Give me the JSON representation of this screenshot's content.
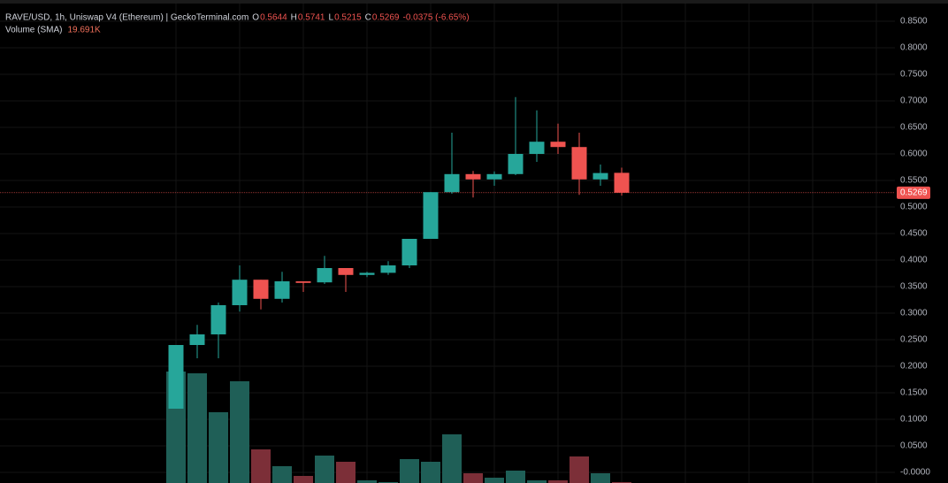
{
  "header": {
    "title": "RAVE/USD, 1h, Uniswap V4 (Ethereum) | GeckoTerminal.com",
    "ohlc": [
      {
        "key": "O",
        "value": "0.5644"
      },
      {
        "key": "H",
        "value": "0.5741"
      },
      {
        "key": "L",
        "value": "0.5215"
      },
      {
        "key": "C",
        "value": "0.5269"
      }
    ],
    "change": "-0.0375 (-6.65%)",
    "volume_label": "Volume (SMA)",
    "volume_value": "19.691K"
  },
  "chart_data": {
    "type": "candlestick",
    "up_color": "#26a69a",
    "down_color": "#ef5350",
    "volume_up_color": "#1f5f57",
    "volume_down_color": "#7c2f38",
    "open": [
      0.12,
      0.24,
      0.26,
      0.315,
      0.363,
      0.327,
      0.36,
      0.358,
      0.385,
      0.372,
      0.376,
      0.39,
      0.44,
      0.528,
      0.562,
      0.552,
      0.562,
      0.6,
      0.623,
      0.613,
      0.552,
      0.5644
    ],
    "high": [
      0.24,
      0.278,
      0.32,
      0.39,
      0.363,
      0.378,
      0.36,
      0.408,
      0.385,
      0.378,
      0.398,
      0.44,
      0.528,
      0.64,
      0.568,
      0.567,
      0.707,
      0.682,
      0.657,
      0.64,
      0.58,
      0.5741
    ],
    "low": [
      0.12,
      0.215,
      0.215,
      0.303,
      0.307,
      0.32,
      0.34,
      0.355,
      0.34,
      0.368,
      0.372,
      0.385,
      0.44,
      0.525,
      0.518,
      0.54,
      0.56,
      0.585,
      0.6,
      0.523,
      0.54,
      0.5215
    ],
    "close": [
      0.24,
      0.26,
      0.315,
      0.363,
      0.327,
      0.36,
      0.357,
      0.385,
      0.372,
      0.376,
      0.39,
      0.44,
      0.528,
      0.562,
      0.552,
      0.562,
      0.6,
      0.623,
      0.613,
      0.552,
      0.564,
      0.5269
    ],
    "volume": [
      63,
      62,
      40,
      57.5,
      19,
      9.5,
      4,
      15.5,
      12,
      1.5,
      0.5,
      13.5,
      12,
      27.5,
      5.5,
      3,
      7,
      1.5,
      1.5,
      15,
      5.5,
      0.5
    ],
    "ylim": [
      0,
      0.85
    ],
    "yticks": [
      {
        "value": 0.85,
        "label": "0.8500"
      },
      {
        "value": 0.8,
        "label": "0.8000"
      },
      {
        "value": 0.75,
        "label": "0.7500"
      },
      {
        "value": 0.7,
        "label": "0.7000"
      },
      {
        "value": 0.65,
        "label": "0.6500"
      },
      {
        "value": 0.6,
        "label": "0.6000"
      },
      {
        "value": 0.55,
        "label": "0.5500"
      },
      {
        "value": 0.5,
        "label": "0.5000"
      },
      {
        "value": 0.45,
        "label": "0.4500"
      },
      {
        "value": 0.4,
        "label": "0.4000"
      },
      {
        "value": 0.35,
        "label": "0.3500"
      },
      {
        "value": 0.3,
        "label": "0.3000"
      },
      {
        "value": 0.25,
        "label": "0.2500"
      },
      {
        "value": 0.2,
        "label": "0.2000"
      },
      {
        "value": 0.15,
        "label": "0.1500"
      },
      {
        "value": 0.1,
        "label": "0.1000"
      },
      {
        "value": 0.05,
        "label": "0.0500"
      },
      {
        "value": 0,
        "label": "-0.0000"
      }
    ],
    "last_price": {
      "value": 0.5269,
      "label": "0.5269"
    },
    "grid": true
  }
}
